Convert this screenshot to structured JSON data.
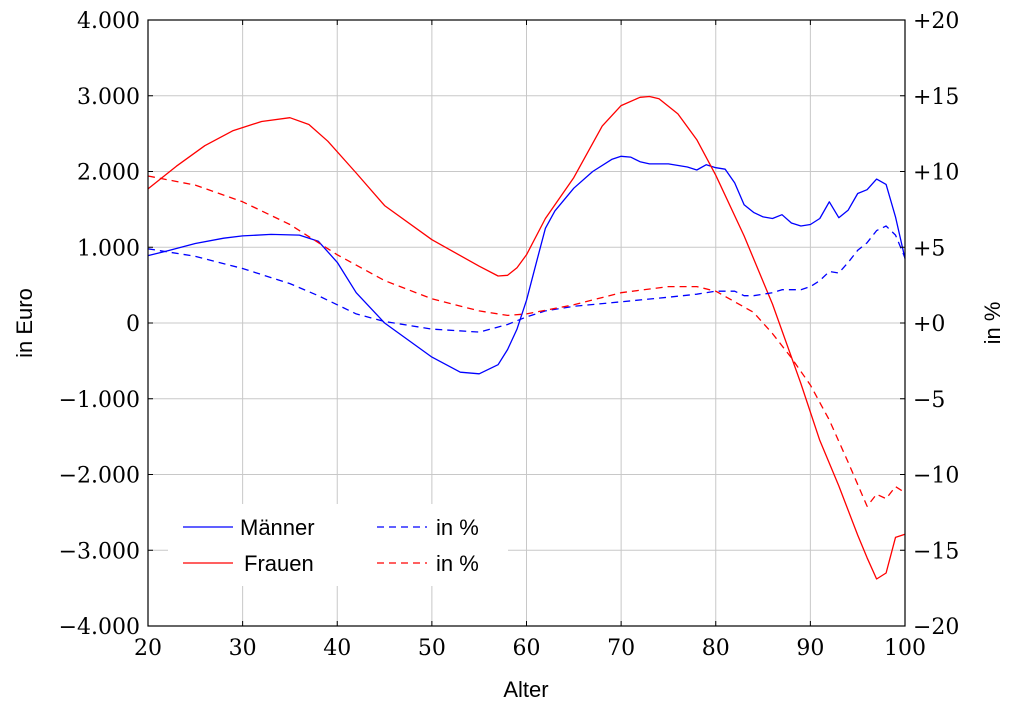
{
  "chart_data": {
    "type": "line",
    "xlabel": "Alter",
    "ylabel_left": "in Euro",
    "ylabel_right": "in %",
    "xlim": [
      20,
      100
    ],
    "ylim_left": [
      -4000,
      4000
    ],
    "ylim_right": [
      -20,
      20
    ],
    "x_ticks": [
      20,
      30,
      40,
      50,
      60,
      70,
      80,
      90,
      100
    ],
    "x_tick_labels": [
      "20",
      "30",
      "40",
      "50",
      "60",
      "70",
      "80",
      "90",
      "100"
    ],
    "y_left_ticks": [
      4000,
      3000,
      2000,
      1000,
      0,
      -1000,
      -2000,
      -3000,
      -4000
    ],
    "y_left_tick_labels": [
      "4.000",
      "3.000",
      "2.000",
      "1.000",
      "0",
      "−1.000",
      "−2.000",
      "−3.000",
      "−4.000"
    ],
    "y_right_ticks": [
      20,
      15,
      10,
      5,
      0,
      -5,
      -10,
      -15,
      -20
    ],
    "y_right_tick_labels": [
      "+20",
      "+15",
      "+10",
      "+5",
      "+0",
      "−5",
      "−10",
      "−15",
      "−20"
    ],
    "grid": true,
    "legend_position": "bottom-left",
    "series": [
      {
        "name": "Männer",
        "axis": "left",
        "style": "solid",
        "color": "#0000ff",
        "x": [
          20,
          22,
          25,
          28,
          30,
          33,
          36,
          38,
          40,
          42,
          45,
          50,
          53,
          55,
          57,
          58,
          59,
          60,
          61,
          62,
          63,
          65,
          67,
          69,
          70,
          71,
          72,
          73,
          75,
          77,
          78,
          79,
          80,
          81,
          82,
          83,
          84,
          85,
          86,
          87,
          88,
          89,
          90,
          91,
          92,
          93,
          94,
          95,
          96,
          97,
          98,
          99,
          100
        ],
        "y": [
          890,
          950,
          1050,
          1120,
          1150,
          1170,
          1160,
          1080,
          800,
          400,
          0,
          -450,
          -650,
          -670,
          -550,
          -350,
          -80,
          300,
          780,
          1250,
          1480,
          1780,
          2000,
          2160,
          2200,
          2190,
          2130,
          2100,
          2100,
          2060,
          2020,
          2090,
          2050,
          2030,
          1850,
          1560,
          1460,
          1400,
          1380,
          1430,
          1320,
          1280,
          1300,
          1380,
          1600,
          1390,
          1490,
          1710,
          1760,
          1900,
          1830,
          1400,
          850
        ]
      },
      {
        "name": "Frauen",
        "axis": "left",
        "style": "solid",
        "color": "#ff0000",
        "x": [
          20,
          23,
          26,
          29,
          32,
          35,
          37,
          39,
          42,
          45,
          50,
          55,
          57,
          58,
          59,
          60,
          62,
          65,
          68,
          70,
          72,
          73,
          74,
          76,
          78,
          80,
          83,
          86,
          89,
          91,
          93,
          95,
          96,
          97,
          98,
          99,
          100
        ],
        "y": [
          1770,
          2070,
          2340,
          2540,
          2660,
          2710,
          2620,
          2400,
          1980,
          1550,
          1100,
          750,
          620,
          630,
          730,
          900,
          1380,
          1920,
          2600,
          2870,
          2980,
          2990,
          2960,
          2760,
          2420,
          1950,
          1150,
          250,
          -800,
          -1550,
          -2150,
          -2800,
          -3100,
          -3380,
          -3300,
          -2830,
          -2790
        ]
      },
      {
        "name": "in %",
        "axis": "right",
        "style": "dashed",
        "color": "#0000ff",
        "x": [
          20,
          25,
          30,
          35,
          38,
          40,
          42,
          45,
          50,
          55,
          58,
          60,
          62,
          65,
          70,
          75,
          78,
          80,
          82,
          83,
          84,
          86,
          87,
          88,
          89,
          90,
          91,
          92,
          93,
          94,
          95,
          96,
          97,
          98,
          99,
          100
        ],
        "y": [
          4.9,
          4.4,
          3.6,
          2.6,
          1.8,
          1.2,
          0.6,
          0.1,
          -0.4,
          -0.6,
          -0.1,
          0.4,
          0.8,
          1.1,
          1.4,
          1.7,
          1.9,
          2.1,
          2.1,
          1.8,
          1.8,
          2.0,
          2.2,
          2.2,
          2.2,
          2.4,
          2.8,
          3.4,
          3.3,
          4.0,
          4.8,
          5.3,
          6.1,
          6.4,
          5.8,
          4.3
        ]
      },
      {
        "name": "in %",
        "axis": "right",
        "style": "dashed",
        "color": "#ff0000",
        "x": [
          20,
          25,
          30,
          35,
          40,
          45,
          50,
          55,
          58,
          60,
          65,
          70,
          75,
          78,
          80,
          82,
          84,
          86,
          88,
          90,
          92,
          94,
          96,
          97,
          98,
          99,
          100
        ],
        "y": [
          9.7,
          9.1,
          8.0,
          6.5,
          4.5,
          2.8,
          1.6,
          0.8,
          0.5,
          0.6,
          1.2,
          2.0,
          2.4,
          2.4,
          2.1,
          1.4,
          0.7,
          -0.7,
          -2.3,
          -4.1,
          -6.4,
          -9.2,
          -12.1,
          -11.3,
          -11.6,
          -10.8,
          -11.2
        ]
      }
    ]
  }
}
